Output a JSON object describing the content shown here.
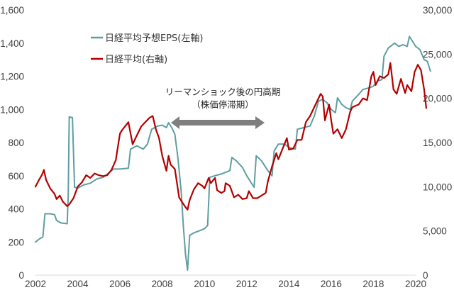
{
  "chart_data": {
    "type": "line",
    "title": "",
    "xlabel": "",
    "ylabel_left": "",
    "ylabel_right": "",
    "x_ticks": [
      "2002",
      "2004",
      "2006",
      "2008",
      "2010",
      "2012",
      "2014",
      "2016",
      "2018",
      "2020"
    ],
    "x_range": [
      2002,
      2020
    ],
    "y_left": {
      "range": [
        0,
        1600
      ],
      "ticks": [
        "0",
        "200",
        "400",
        "600",
        "800",
        "1,000",
        "1,200",
        "1,400",
        "1,600"
      ]
    },
    "y_right": {
      "range": [
        0,
        30000
      ],
      "ticks": [
        "0",
        "5,000",
        "10,000",
        "15,000",
        "20,000",
        "25,000",
        "30,000"
      ]
    },
    "grid": false,
    "legend_position": "upper-left-inside",
    "series": [
      {
        "name": "日経平均予想EPS(左軸)",
        "axis": "left",
        "color": "#5f9ea0",
        "points": [
          [
            2002.0,
            200
          ],
          [
            2002.2,
            220
          ],
          [
            2002.35,
            230
          ],
          [
            2002.45,
            370
          ],
          [
            2002.7,
            370
          ],
          [
            2002.9,
            365
          ],
          [
            2003.0,
            330
          ],
          [
            2003.2,
            315
          ],
          [
            2003.5,
            310
          ],
          [
            2003.55,
            480
          ],
          [
            2003.6,
            955
          ],
          [
            2003.75,
            950
          ],
          [
            2003.85,
            530
          ],
          [
            2004.0,
            525
          ],
          [
            2004.3,
            545
          ],
          [
            2004.6,
            555
          ],
          [
            2004.9,
            580
          ],
          [
            2005.2,
            590
          ],
          [
            2005.5,
            620
          ],
          [
            2005.7,
            640
          ],
          [
            2006.0,
            640
          ],
          [
            2006.4,
            645
          ],
          [
            2006.5,
            760
          ],
          [
            2006.8,
            780
          ],
          [
            2007.1,
            760
          ],
          [
            2007.3,
            790
          ],
          [
            2007.5,
            880
          ],
          [
            2007.8,
            900
          ],
          [
            2008.0,
            905
          ],
          [
            2008.2,
            890
          ],
          [
            2008.3,
            920
          ],
          [
            2008.45,
            890
          ],
          [
            2008.6,
            850
          ],
          [
            2008.75,
            700
          ],
          [
            2008.9,
            500
          ],
          [
            2009.0,
            300
          ],
          [
            2009.1,
            130
          ],
          [
            2009.2,
            30
          ],
          [
            2009.3,
            240
          ],
          [
            2009.5,
            255
          ],
          [
            2009.8,
            270
          ],
          [
            2010.0,
            280
          ],
          [
            2010.15,
            300
          ],
          [
            2010.25,
            590
          ],
          [
            2010.5,
            600
          ],
          [
            2010.8,
            610
          ],
          [
            2011.0,
            620
          ],
          [
            2011.2,
            630
          ],
          [
            2011.3,
            710
          ],
          [
            2011.5,
            690
          ],
          [
            2011.8,
            650
          ],
          [
            2012.0,
            600
          ],
          [
            2012.2,
            560
          ],
          [
            2012.35,
            530
          ],
          [
            2012.45,
            720
          ],
          [
            2012.7,
            690
          ],
          [
            2012.9,
            650
          ],
          [
            2013.0,
            630
          ],
          [
            2013.2,
            600
          ],
          [
            2013.3,
            750
          ],
          [
            2013.5,
            790
          ],
          [
            2013.8,
            790
          ],
          [
            2014.0,
            770
          ],
          [
            2014.3,
            760
          ],
          [
            2014.4,
            880
          ],
          [
            2014.7,
            890
          ],
          [
            2015.0,
            900
          ],
          [
            2015.2,
            960
          ],
          [
            2015.4,
            1050
          ],
          [
            2015.6,
            1060
          ],
          [
            2015.8,
            1040
          ],
          [
            2016.0,
            1000
          ],
          [
            2016.2,
            980
          ],
          [
            2016.3,
            1070
          ],
          [
            2016.5,
            1030
          ],
          [
            2016.7,
            1010
          ],
          [
            2016.9,
            1000
          ],
          [
            2017.0,
            1050
          ],
          [
            2017.3,
            1090
          ],
          [
            2017.5,
            1120
          ],
          [
            2017.8,
            1130
          ],
          [
            2018.0,
            1140
          ],
          [
            2018.2,
            1170
          ],
          [
            2018.4,
            1180
          ],
          [
            2018.5,
            1320
          ],
          [
            2018.7,
            1370
          ],
          [
            2019.0,
            1400
          ],
          [
            2019.2,
            1380
          ],
          [
            2019.4,
            1390
          ],
          [
            2019.6,
            1380
          ],
          [
            2019.7,
            1440
          ],
          [
            2019.85,
            1410
          ],
          [
            2020.0,
            1380
          ],
          [
            2020.2,
            1360
          ],
          [
            2020.4,
            1300
          ],
          [
            2020.55,
            1290
          ],
          [
            2020.7,
            1230
          ]
        ]
      },
      {
        "name": "日経平均(右軸)",
        "axis": "right",
        "color": "#b30000",
        "points": [
          [
            2002.0,
            10000
          ],
          [
            2002.15,
            10700
          ],
          [
            2002.3,
            11300
          ],
          [
            2002.4,
            11900
          ],
          [
            2002.5,
            10800
          ],
          [
            2002.7,
            9800
          ],
          [
            2002.9,
            9200
          ],
          [
            2003.0,
            8600
          ],
          [
            2003.15,
            9000
          ],
          [
            2003.3,
            8300
          ],
          [
            2003.5,
            7800
          ],
          [
            2003.6,
            8000
          ],
          [
            2003.8,
            8700
          ],
          [
            2004.0,
            10000
          ],
          [
            2004.2,
            10500
          ],
          [
            2004.4,
            11300
          ],
          [
            2004.6,
            11000
          ],
          [
            2004.8,
            11500
          ],
          [
            2005.0,
            11300
          ],
          [
            2005.2,
            11200
          ],
          [
            2005.4,
            11300
          ],
          [
            2005.6,
            11900
          ],
          [
            2005.8,
            13000
          ],
          [
            2006.0,
            16000
          ],
          [
            2006.1,
            16400
          ],
          [
            2006.3,
            17000
          ],
          [
            2006.4,
            17300
          ],
          [
            2006.6,
            14800
          ],
          [
            2006.8,
            15800
          ],
          [
            2007.0,
            16800
          ],
          [
            2007.2,
            17300
          ],
          [
            2007.4,
            17800
          ],
          [
            2007.55,
            18000
          ],
          [
            2007.7,
            16500
          ],
          [
            2007.85,
            15500
          ],
          [
            2008.0,
            13500
          ],
          [
            2008.2,
            11800
          ],
          [
            2008.3,
            13500
          ],
          [
            2008.4,
            12500
          ],
          [
            2008.6,
            12000
          ],
          [
            2008.8,
            8800
          ],
          [
            2008.9,
            8400
          ],
          [
            2009.1,
            7700
          ],
          [
            2009.2,
            7400
          ],
          [
            2009.3,
            8500
          ],
          [
            2009.5,
            9700
          ],
          [
            2009.7,
            10400
          ],
          [
            2009.9,
            10100
          ],
          [
            2010.0,
            9800
          ],
          [
            2010.2,
            11000
          ],
          [
            2010.3,
            10400
          ],
          [
            2010.5,
            11000
          ],
          [
            2010.6,
            9600
          ],
          [
            2010.8,
            9300
          ],
          [
            2010.95,
            9500
          ],
          [
            2011.0,
            10400
          ],
          [
            2011.2,
            10100
          ],
          [
            2011.4,
            8800
          ],
          [
            2011.6,
            9100
          ],
          [
            2011.8,
            8600
          ],
          [
            2012.0,
            8700
          ],
          [
            2012.1,
            9500
          ],
          [
            2012.3,
            8700
          ],
          [
            2012.5,
            8700
          ],
          [
            2012.7,
            9000
          ],
          [
            2012.9,
            9300
          ],
          [
            2013.0,
            10600
          ],
          [
            2013.2,
            12300
          ],
          [
            2013.4,
            13800
          ],
          [
            2013.5,
            13100
          ],
          [
            2013.7,
            14300
          ],
          [
            2013.9,
            15500
          ],
          [
            2014.0,
            14200
          ],
          [
            2014.2,
            14300
          ],
          [
            2014.4,
            15300
          ],
          [
            2014.6,
            15300
          ],
          [
            2014.8,
            17300
          ],
          [
            2015.0,
            18000
          ],
          [
            2015.3,
            19500
          ],
          [
            2015.5,
            20500
          ],
          [
            2015.6,
            20200
          ],
          [
            2015.7,
            17500
          ],
          [
            2015.9,
            19300
          ],
          [
            2016.0,
            17500
          ],
          [
            2016.1,
            16000
          ],
          [
            2016.3,
            16500
          ],
          [
            2016.5,
            15500
          ],
          [
            2016.7,
            16500
          ],
          [
            2016.9,
            18500
          ],
          [
            2017.0,
            19000
          ],
          [
            2017.3,
            19300
          ],
          [
            2017.5,
            20000
          ],
          [
            2017.7,
            19800
          ],
          [
            2017.9,
            22500
          ],
          [
            2018.0,
            23000
          ],
          [
            2018.1,
            21500
          ],
          [
            2018.3,
            22500
          ],
          [
            2018.5,
            22300
          ],
          [
            2018.7,
            22700
          ],
          [
            2018.8,
            24000
          ],
          [
            2018.95,
            21000
          ],
          [
            2019.1,
            20500
          ],
          [
            2019.3,
            22200
          ],
          [
            2019.5,
            20600
          ],
          [
            2019.6,
            21500
          ],
          [
            2019.8,
            20800
          ],
          [
            2019.95,
            23000
          ],
          [
            2020.1,
            23800
          ],
          [
            2020.25,
            23200
          ],
          [
            2020.4,
            21000
          ],
          [
            2020.5,
            18900
          ]
        ]
      }
    ],
    "annotations": [
      {
        "text_line1": "リーマンショック後の円高期",
        "text_line2": "（株価停滞期）",
        "arrow": "double-headed",
        "arrow_from_year": 2008.3,
        "arrow_to_year": 2012.7,
        "arrow_color": "#7f7f7f"
      }
    ]
  },
  "legend": {
    "items": [
      {
        "label": "日経平均予想EPS(左軸)",
        "color": "#5f9ea0"
      },
      {
        "label": "日経平均(右軸)",
        "color": "#b30000"
      }
    ]
  },
  "annotation": {
    "line1": "リーマンショック後の円高期",
    "line2": "（株価停滞期）"
  }
}
